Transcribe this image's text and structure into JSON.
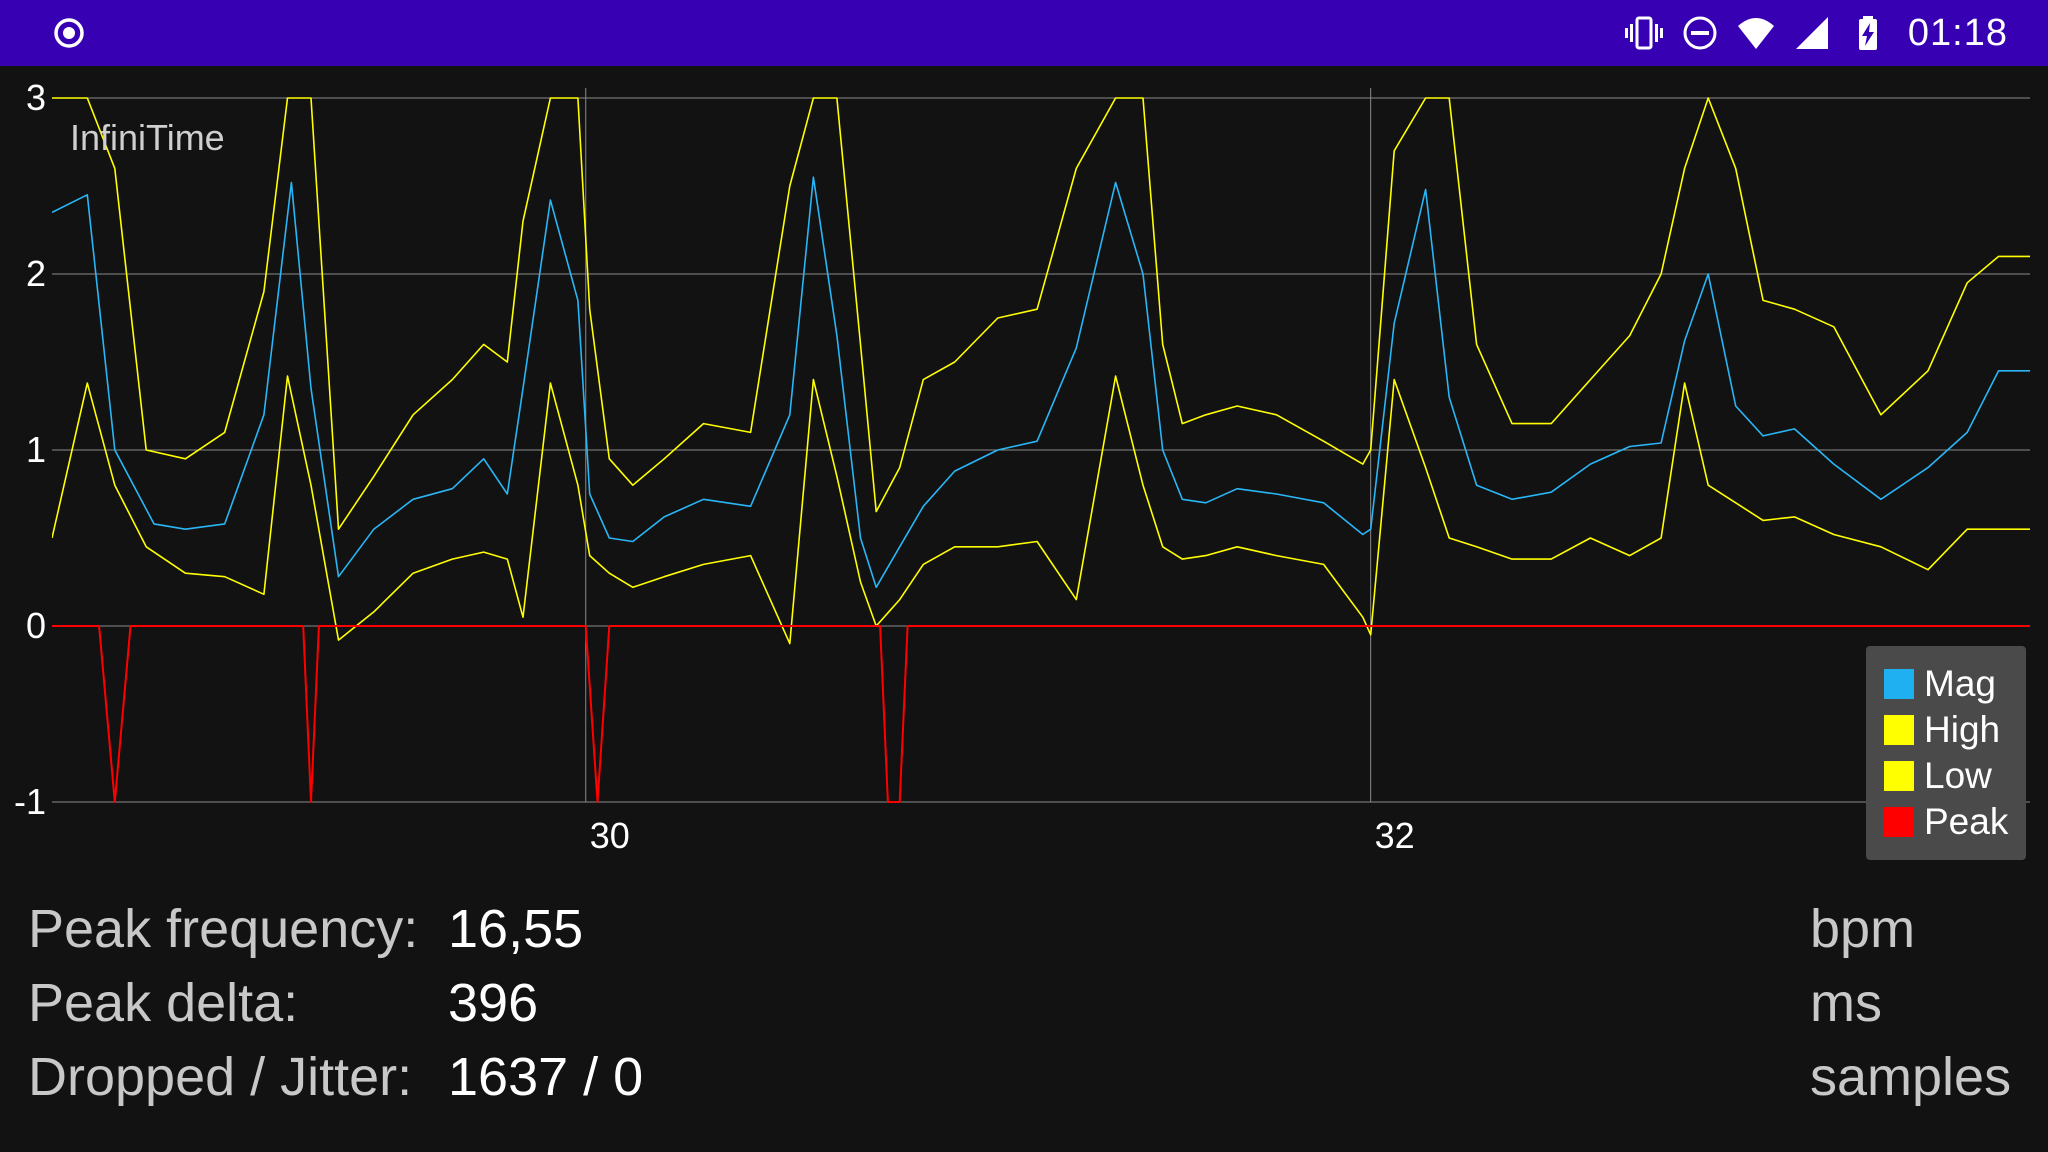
{
  "status_bar": {
    "time": "01:18",
    "icons": [
      "camera-record-icon",
      "vibrate-icon",
      "do-not-disturb-icon",
      "wifi-icon",
      "cell-signal-icon",
      "battery-charging-icon"
    ],
    "background": "#3700b3"
  },
  "chart_data": {
    "type": "line",
    "title": "InfiniTime",
    "x_ticks": [
      "30",
      "32"
    ],
    "y_ticks": [
      "3",
      "2",
      "1",
      "0",
      "-1"
    ],
    "xlim": [
      28.64,
      33.68
    ],
    "ylim": [
      -1,
      3
    ],
    "grid": true,
    "legend_position": "bottom-right",
    "series": [
      {
        "name": "Mag",
        "color": "#29b6f6",
        "x": [
          28.64,
          28.73,
          28.8,
          28.9,
          28.98,
          29.08,
          29.18,
          29.25,
          29.3,
          29.37,
          29.46,
          29.56,
          29.66,
          29.74,
          29.8,
          29.84,
          29.91,
          29.98,
          30.01,
          30.06,
          30.12,
          30.2,
          30.3,
          30.42,
          30.52,
          30.58,
          30.64,
          30.7,
          30.74,
          30.8,
          30.86,
          30.94,
          31.05,
          31.15,
          31.25,
          31.35,
          31.42,
          31.47,
          31.52,
          31.58,
          31.66,
          31.76,
          31.88,
          31.98,
          32.0,
          32.06,
          32.14,
          32.2,
          32.27,
          32.36,
          32.46,
          32.56,
          32.66,
          32.74,
          32.8,
          32.86,
          32.93,
          33.0,
          33.08,
          33.18,
          33.3,
          33.42,
          33.52,
          33.6,
          33.68
        ],
        "y": [
          2.35,
          2.45,
          1.0,
          0.58,
          0.55,
          0.58,
          1.2,
          2.52,
          1.35,
          0.28,
          0.55,
          0.72,
          0.78,
          0.95,
          0.75,
          1.35,
          2.42,
          1.85,
          0.75,
          0.5,
          0.48,
          0.62,
          0.72,
          0.68,
          1.2,
          2.55,
          1.65,
          0.5,
          0.22,
          0.45,
          0.68,
          0.88,
          1.0,
          1.05,
          1.58,
          2.52,
          2.0,
          1.0,
          0.72,
          0.7,
          0.78,
          0.75,
          0.7,
          0.52,
          0.55,
          1.72,
          2.48,
          1.3,
          0.8,
          0.72,
          0.76,
          0.92,
          1.02,
          1.04,
          1.62,
          2.0,
          1.25,
          1.08,
          1.12,
          0.92,
          0.72,
          0.9,
          1.1,
          1.45,
          1.45
        ]
      },
      {
        "name": "High",
        "color": "#ffff00",
        "x": [
          28.64,
          28.73,
          28.8,
          28.88,
          28.98,
          29.08,
          29.18,
          29.24,
          29.3,
          29.37,
          29.46,
          29.56,
          29.66,
          29.74,
          29.8,
          29.84,
          29.91,
          29.98,
          30.01,
          30.06,
          30.12,
          30.2,
          30.3,
          30.42,
          30.52,
          30.58,
          30.64,
          30.7,
          30.74,
          30.8,
          30.86,
          30.94,
          31.05,
          31.15,
          31.25,
          31.35,
          31.42,
          31.47,
          31.52,
          31.58,
          31.66,
          31.76,
          31.88,
          31.98,
          32.0,
          32.06,
          32.14,
          32.2,
          32.27,
          32.36,
          32.46,
          32.56,
          32.66,
          32.74,
          32.8,
          32.86,
          32.93,
          33.0,
          33.08,
          33.18,
          33.3,
          33.42,
          33.52,
          33.6,
          33.68
        ],
        "y": [
          3.0,
          3.0,
          2.6,
          1.0,
          0.95,
          1.1,
          1.9,
          3.0,
          3.0,
          0.55,
          0.85,
          1.2,
          1.4,
          1.6,
          1.5,
          2.3,
          3.0,
          3.0,
          1.8,
          0.95,
          0.8,
          0.95,
          1.15,
          1.1,
          2.5,
          3.0,
          3.0,
          1.6,
          0.65,
          0.9,
          1.4,
          1.5,
          1.75,
          1.8,
          2.6,
          3.0,
          3.0,
          1.6,
          1.15,
          1.2,
          1.25,
          1.2,
          1.05,
          0.92,
          1.0,
          2.7,
          3.0,
          3.0,
          1.6,
          1.15,
          1.15,
          1.4,
          1.65,
          2.0,
          2.6,
          3.0,
          2.6,
          1.85,
          1.8,
          1.7,
          1.2,
          1.45,
          1.95,
          2.1,
          2.1
        ]
      },
      {
        "name": "Low",
        "color": "#ffff00",
        "x": [
          28.64,
          28.73,
          28.8,
          28.88,
          28.98,
          29.08,
          29.18,
          29.24,
          29.3,
          29.37,
          29.46,
          29.56,
          29.66,
          29.74,
          29.8,
          29.84,
          29.91,
          29.98,
          30.01,
          30.06,
          30.12,
          30.2,
          30.3,
          30.42,
          30.52,
          30.58,
          30.64,
          30.7,
          30.74,
          30.8,
          30.86,
          30.94,
          31.05,
          31.15,
          31.25,
          31.35,
          31.42,
          31.47,
          31.52,
          31.58,
          31.66,
          31.76,
          31.88,
          31.98,
          32.0,
          32.06,
          32.14,
          32.2,
          32.27,
          32.36,
          32.46,
          32.56,
          32.66,
          32.74,
          32.8,
          32.86,
          32.93,
          33.0,
          33.08,
          33.18,
          33.3,
          33.42,
          33.52,
          33.6,
          33.68
        ],
        "y": [
          0.5,
          1.38,
          0.8,
          0.45,
          0.3,
          0.28,
          0.18,
          1.42,
          0.8,
          -0.08,
          0.08,
          0.3,
          0.38,
          0.42,
          0.38,
          0.05,
          1.38,
          0.8,
          0.4,
          0.3,
          0.22,
          0.28,
          0.35,
          0.4,
          -0.1,
          1.4,
          0.85,
          0.25,
          0.0,
          0.15,
          0.35,
          0.45,
          0.45,
          0.48,
          0.15,
          1.42,
          0.8,
          0.45,
          0.38,
          0.4,
          0.45,
          0.4,
          0.35,
          0.05,
          -0.05,
          1.4,
          0.9,
          0.5,
          0.45,
          0.38,
          0.38,
          0.5,
          0.4,
          0.5,
          1.38,
          0.8,
          0.7,
          0.6,
          0.62,
          0.52,
          0.45,
          0.32,
          0.55,
          0.55,
          0.55
        ]
      },
      {
        "name": "Peak",
        "color": "#ff0000",
        "x": [
          28.64,
          28.76,
          28.8,
          28.84,
          29.28,
          29.3,
          29.32,
          30.0,
          30.03,
          30.06,
          30.75,
          30.77,
          30.8,
          30.82,
          33.68
        ],
        "y": [
          0,
          0,
          -1,
          0,
          0,
          -1,
          0,
          0,
          -1,
          0,
          0,
          -1,
          -1,
          0,
          0
        ]
      }
    ]
  },
  "stats": {
    "rows": [
      {
        "label": "Peak frequency:",
        "value": "16,55",
        "unit": "bpm"
      },
      {
        "label": "Peak delta:",
        "value": "396",
        "unit": "ms"
      },
      {
        "label": "Dropped / Jitter:",
        "value": "1637 / 0",
        "unit": "samples"
      }
    ]
  }
}
